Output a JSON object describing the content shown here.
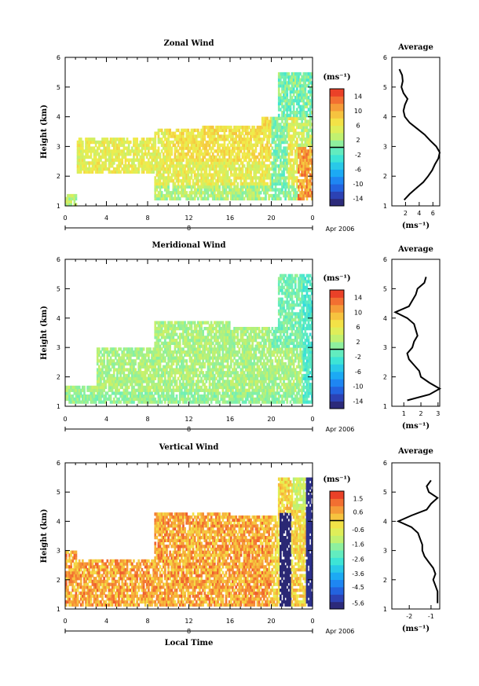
{
  "chart_data": [
    {
      "type": "heatmap",
      "title": "Zonal Wind",
      "xlabel": "",
      "ylabel": "Height (km)",
      "xlim": [
        0,
        24
      ],
      "ylim": [
        1,
        6
      ],
      "x_ticks": [
        "0",
        "4",
        "8",
        "12",
        "16",
        "20",
        "0"
      ],
      "y_ticks": [
        "1",
        "2",
        "3",
        "4",
        "5",
        "6"
      ],
      "date_label": "8",
      "month_label": "Apr 2006",
      "colorbar": {
        "unit": "(ms⁻¹)",
        "min": -16,
        "max": 16,
        "labels": [
          "14",
          "10",
          "6",
          "2",
          "-2",
          "-6",
          "-10",
          "-14"
        ],
        "label_values": [
          14,
          10,
          6,
          2,
          -2,
          -6,
          -10,
          -14
        ]
      },
      "profile": {
        "title": "Average",
        "xlabel": "(ms⁻¹)",
        "x_ticks": [
          "2",
          "4",
          "6"
        ],
        "x_tick_values": [
          2,
          4,
          6
        ],
        "xlim": [
          0,
          7
        ],
        "heights": [
          1.2,
          1.4,
          1.6,
          1.8,
          2.0,
          2.2,
          2.4,
          2.6,
          2.8,
          3.0,
          3.2,
          3.4,
          3.6,
          3.8,
          4.0,
          4.2,
          4.4,
          4.6,
          4.8,
          5.0,
          5.2,
          5.4,
          5.6
        ],
        "values": [
          1.8,
          2.6,
          3.6,
          4.6,
          5.3,
          5.9,
          6.3,
          6.8,
          7.0,
          6.5,
          5.6,
          4.8,
          3.7,
          2.6,
          1.9,
          1.7,
          1.9,
          2.3,
          1.7,
          1.4,
          1.6,
          1.5,
          1.1
        ]
      }
    },
    {
      "type": "heatmap",
      "title": "Meridional Wind",
      "xlabel": "",
      "ylabel": "Height (km)",
      "xlim": [
        0,
        24
      ],
      "ylim": [
        1,
        6
      ],
      "x_ticks": [
        "0",
        "4",
        "8",
        "12",
        "16",
        "20",
        "0"
      ],
      "y_ticks": [
        "1",
        "2",
        "3",
        "4",
        "5",
        "6"
      ],
      "date_label": "8",
      "month_label": "Apr 2006",
      "colorbar": {
        "unit": "(ms⁻¹)",
        "min": -16,
        "max": 16,
        "labels": [
          "14",
          "10",
          "6",
          "2",
          "-2",
          "-6",
          "-10",
          "-14"
        ],
        "label_values": [
          14,
          10,
          6,
          2,
          -2,
          -6,
          -10,
          -14
        ]
      },
      "profile": {
        "title": "Average",
        "xlabel": "(ms⁻¹)",
        "x_ticks": [
          "1",
          "2",
          "3"
        ],
        "x_tick_values": [
          1,
          2,
          3
        ],
        "xlim": [
          0.3,
          3.1
        ],
        "heights": [
          1.2,
          1.4,
          1.6,
          1.8,
          2.0,
          2.2,
          2.4,
          2.6,
          2.8,
          3.0,
          3.2,
          3.4,
          3.6,
          3.8,
          4.0,
          4.2,
          4.4,
          4.6,
          4.8,
          5.0,
          5.2,
          5.4
        ],
        "values": [
          1.2,
          2.5,
          3.1,
          2.5,
          2.0,
          1.9,
          1.6,
          1.3,
          1.2,
          1.5,
          1.6,
          1.8,
          1.7,
          1.6,
          1.2,
          0.5,
          1.3,
          1.5,
          1.7,
          1.8,
          2.2,
          2.3
        ]
      }
    },
    {
      "type": "heatmap",
      "title": "Vertical Wind",
      "xlabel": "Local Time",
      "ylabel": "Height (km)",
      "xlim": [
        0,
        24
      ],
      "ylim": [
        1,
        6
      ],
      "x_ticks": [
        "0",
        "4",
        "8",
        "12",
        "16",
        "20",
        "0"
      ],
      "y_ticks": [
        "1",
        "2",
        "3",
        "4",
        "5",
        "6"
      ],
      "date_label": "8",
      "month_label": "Apr 2006",
      "colorbar": {
        "unit": "(ms⁻¹)",
        "min": -6,
        "max": 2,
        "labels": [
          "1.5",
          "0.6",
          "-0.6",
          "-1.6",
          "-2.6",
          "-3.6",
          "-4.5",
          "-5.6"
        ],
        "label_values": [
          1.5,
          0.6,
          -0.6,
          -1.6,
          -2.6,
          -3.6,
          -4.5,
          -5.6
        ]
      },
      "profile": {
        "title": "Average",
        "xlabel": "(ms⁻¹)",
        "x_ticks": [
          "-2",
          "-1"
        ],
        "x_tick_values": [
          -2,
          -1
        ],
        "xlim": [
          -2.8,
          -0.6
        ],
        "heights": [
          1.2,
          1.4,
          1.6,
          1.8,
          2.0,
          2.2,
          2.4,
          2.6,
          2.8,
          3.0,
          3.2,
          3.4,
          3.6,
          3.8,
          4.0,
          4.2,
          4.4,
          4.6,
          4.8,
          5.0,
          5.2,
          5.4
        ],
        "values": [
          -0.7,
          -0.7,
          -0.7,
          -0.8,
          -0.9,
          -0.8,
          -0.9,
          -1.1,
          -1.3,
          -1.4,
          -1.4,
          -1.5,
          -1.6,
          -1.9,
          -2.5,
          -1.9,
          -1.2,
          -1.0,
          -0.7,
          -1.1,
          -1.2,
          -1.0
        ]
      }
    }
  ]
}
